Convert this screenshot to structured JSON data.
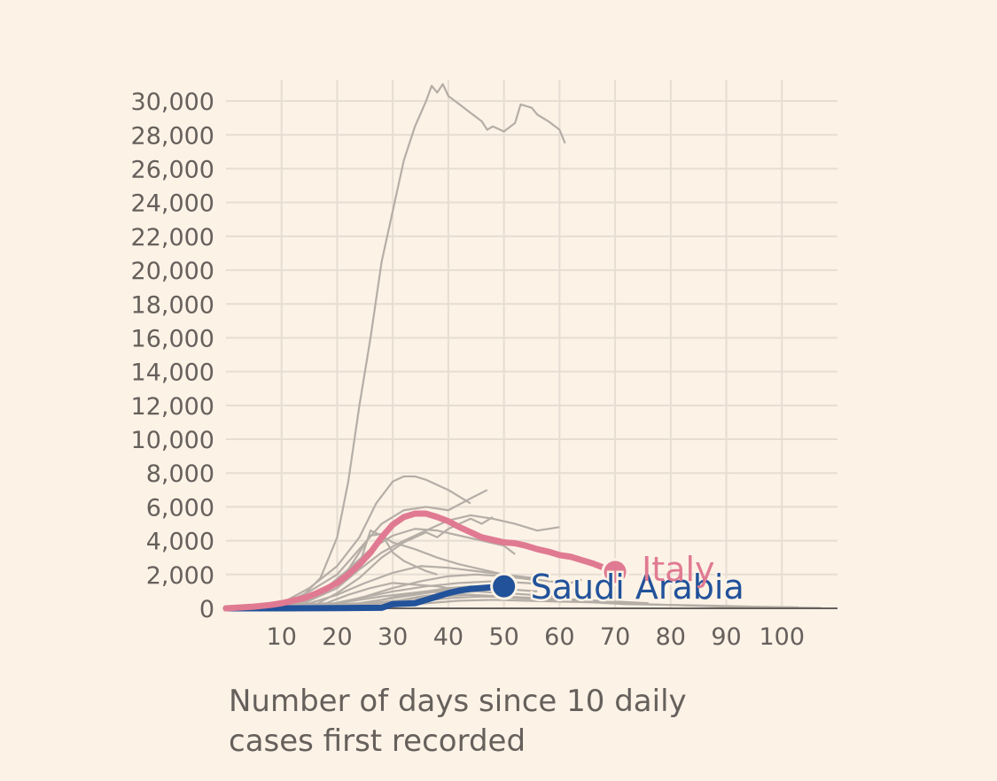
{
  "chart_data": {
    "type": "line",
    "title": "",
    "xlabel": "Number of days since 10 daily cases first recorded",
    "ylabel": "",
    "xlim": [
      0,
      110
    ],
    "ylim": [
      0,
      31000
    ],
    "x_ticks": [
      10,
      20,
      30,
      40,
      50,
      60,
      70,
      80,
      90,
      100
    ],
    "y_ticks": [
      0,
      2000,
      4000,
      6000,
      8000,
      10000,
      12000,
      14000,
      16000,
      18000,
      20000,
      22000,
      24000,
      26000,
      28000,
      30000
    ],
    "y_tick_labels": [
      "0",
      "2,000",
      "4,000",
      "6,000",
      "8,000",
      "10,000",
      "12,000",
      "14,000",
      "16,000",
      "18,000",
      "20,000",
      "22,000",
      "24,000",
      "26,000",
      "28,000",
      "30,000"
    ],
    "x_tick_labels": [
      "10",
      "20",
      "30",
      "40",
      "50",
      "60",
      "70",
      "80",
      "90",
      "100"
    ],
    "grid": true,
    "colors": {
      "background": "#fcf2e6",
      "grid": "#e6ddd3",
      "other_countries": "#b5aea7",
      "italy": "#e07a92",
      "saudi_arabia": "#21529a",
      "tick_text": "#66605c"
    },
    "highlighted": [
      {
        "name": "Italy",
        "color": "#e07a92",
        "points": [
          [
            0,
            0
          ],
          [
            5,
            100
          ],
          [
            8,
            200
          ],
          [
            10,
            300
          ],
          [
            12,
            450
          ],
          [
            14,
            600
          ],
          [
            16,
            850
          ],
          [
            18,
            1150
          ],
          [
            20,
            1500
          ],
          [
            22,
            2000
          ],
          [
            24,
            2600
          ],
          [
            26,
            3300
          ],
          [
            28,
            4200
          ],
          [
            30,
            4950
          ],
          [
            32,
            5400
          ],
          [
            34,
            5600
          ],
          [
            36,
            5600
          ],
          [
            38,
            5400
          ],
          [
            40,
            5150
          ],
          [
            42,
            4800
          ],
          [
            44,
            4500
          ],
          [
            46,
            4200
          ],
          [
            48,
            4050
          ],
          [
            50,
            3900
          ],
          [
            52,
            3850
          ],
          [
            54,
            3700
          ],
          [
            56,
            3500
          ],
          [
            58,
            3350
          ],
          [
            60,
            3150
          ],
          [
            62,
            3050
          ],
          [
            64,
            2850
          ],
          [
            66,
            2650
          ],
          [
            68,
            2400
          ],
          [
            70,
            2150
          ]
        ]
      },
      {
        "name": "Saudi Arabia",
        "color": "#21529a",
        "points": [
          [
            0,
            0
          ],
          [
            10,
            0
          ],
          [
            20,
            10
          ],
          [
            28,
            30
          ],
          [
            30,
            250
          ],
          [
            34,
            300
          ],
          [
            36,
            500
          ],
          [
            38,
            700
          ],
          [
            40,
            900
          ],
          [
            42,
            1050
          ],
          [
            44,
            1150
          ],
          [
            46,
            1200
          ],
          [
            48,
            1250
          ],
          [
            50,
            1300
          ]
        ]
      }
    ],
    "other_series": [
      [
        [
          0,
          0
        ],
        [
          10,
          250
        ],
        [
          14,
          800
        ],
        [
          17,
          1800
        ],
        [
          20,
          4200
        ],
        [
          22,
          7500
        ],
        [
          24,
          12000
        ],
        [
          26,
          16000
        ],
        [
          28,
          20500
        ],
        [
          30,
          23500
        ],
        [
          32,
          26500
        ],
        [
          34,
          28500
        ],
        [
          36,
          30000
        ],
        [
          37,
          30900
        ],
        [
          38,
          30500
        ],
        [
          39,
          31000
        ],
        [
          40,
          30300
        ],
        [
          42,
          29800
        ],
        [
          44,
          29300
        ],
        [
          46,
          28800
        ],
        [
          47,
          28300
        ],
        [
          48,
          28500
        ],
        [
          50,
          28200
        ],
        [
          52,
          28700
        ],
        [
          53,
          29800
        ],
        [
          55,
          29600
        ],
        [
          56,
          29200
        ],
        [
          58,
          28800
        ],
        [
          60,
          28300
        ],
        [
          61,
          27500
        ]
      ],
      [
        [
          0,
          0
        ],
        [
          10,
          300
        ],
        [
          15,
          1200
        ],
        [
          20,
          2500
        ],
        [
          24,
          4200
        ],
        [
          27,
          6200
        ],
        [
          30,
          7500
        ],
        [
          32,
          7800
        ],
        [
          34,
          7800
        ],
        [
          36,
          7600
        ],
        [
          38,
          7300
        ],
        [
          40,
          7000
        ],
        [
          42,
          6600
        ],
        [
          44,
          6200
        ]
      ],
      [
        [
          0,
          0
        ],
        [
          10,
          200
        ],
        [
          15,
          1000
        ],
        [
          20,
          2000
        ],
        [
          24,
          3500
        ],
        [
          28,
          5000
        ],
        [
          32,
          5800
        ],
        [
          36,
          6000
        ],
        [
          40,
          5800
        ],
        [
          44,
          6500
        ],
        [
          47,
          7000
        ]
      ],
      [
        [
          0,
          0
        ],
        [
          12,
          300
        ],
        [
          18,
          1200
        ],
        [
          22,
          2300
        ],
        [
          26,
          3500
        ],
        [
          30,
          4300
        ],
        [
          34,
          4700
        ],
        [
          38,
          4600
        ],
        [
          42,
          4300
        ],
        [
          46,
          4000
        ],
        [
          50,
          3700
        ],
        [
          52,
          3200
        ]
      ],
      [
        [
          0,
          0
        ],
        [
          14,
          300
        ],
        [
          20,
          1200
        ],
        [
          24,
          2300
        ],
        [
          28,
          3300
        ],
        [
          32,
          4000
        ],
        [
          36,
          4600
        ],
        [
          40,
          5200
        ],
        [
          44,
          5500
        ],
        [
          48,
          5300
        ],
        [
          52,
          5000
        ],
        [
          56,
          4600
        ],
        [
          60,
          4800
        ]
      ],
      [
        [
          0,
          0
        ],
        [
          10,
          100
        ],
        [
          15,
          700
        ],
        [
          20,
          1500
        ],
        [
          24,
          2600
        ],
        [
          26,
          4600
        ],
        [
          28,
          4300
        ],
        [
          30,
          3900
        ],
        [
          34,
          3500
        ],
        [
          38,
          3000
        ],
        [
          42,
          2600
        ],
        [
          46,
          2300
        ],
        [
          50,
          2000
        ],
        [
          54,
          1800
        ],
        [
          58,
          1600
        ],
        [
          62,
          1500
        ],
        [
          64,
          1700
        ]
      ],
      [
        [
          0,
          0
        ],
        [
          16,
          200
        ],
        [
          20,
          900
        ],
        [
          24,
          1800
        ],
        [
          28,
          3000
        ],
        [
          32,
          3900
        ],
        [
          36,
          4500
        ],
        [
          38,
          4200
        ],
        [
          40,
          4700
        ],
        [
          44,
          5300
        ],
        [
          46,
          5000
        ],
        [
          48,
          5400
        ]
      ],
      [
        [
          0,
          0
        ],
        [
          14,
          400
        ],
        [
          18,
          1000
        ],
        [
          22,
          2300
        ],
        [
          26,
          4300
        ],
        [
          28,
          4400
        ],
        [
          30,
          3300
        ],
        [
          32,
          2800
        ],
        [
          34,
          2500
        ],
        [
          36,
          2200
        ],
        [
          38,
          2000
        ]
      ],
      [
        [
          0,
          0
        ],
        [
          15,
          300
        ],
        [
          20,
          800
        ],
        [
          25,
          1500
        ],
        [
          30,
          2100
        ],
        [
          35,
          2500
        ],
        [
          40,
          2400
        ],
        [
          45,
          2200
        ],
        [
          50,
          2000
        ],
        [
          55,
          1800
        ]
      ],
      [
        [
          0,
          0
        ],
        [
          20,
          300
        ],
        [
          25,
          700
        ],
        [
          30,
          1200
        ],
        [
          35,
          1600
        ],
        [
          40,
          1900
        ],
        [
          45,
          2000
        ],
        [
          50,
          1900
        ],
        [
          55,
          1700
        ]
      ],
      [
        [
          0,
          0
        ],
        [
          18,
          200
        ],
        [
          24,
          600
        ],
        [
          30,
          1000
        ],
        [
          36,
          1300
        ],
        [
          42,
          1500
        ],
        [
          48,
          1600
        ],
        [
          54,
          1500
        ],
        [
          58,
          1400
        ]
      ],
      [
        [
          0,
          0
        ],
        [
          22,
          200
        ],
        [
          28,
          500
        ],
        [
          32,
          800
        ],
        [
          36,
          1000
        ],
        [
          40,
          1200
        ],
        [
          44,
          1300
        ],
        [
          48,
          1200
        ],
        [
          52,
          1100
        ],
        [
          56,
          1000
        ]
      ],
      [
        [
          0,
          0
        ],
        [
          25,
          200
        ],
        [
          30,
          400
        ],
        [
          35,
          700
        ],
        [
          40,
          900
        ],
        [
          45,
          1000
        ],
        [
          50,
          900
        ],
        [
          55,
          800
        ],
        [
          60,
          700
        ]
      ],
      [
        [
          0,
          0
        ],
        [
          20,
          100
        ],
        [
          26,
          300
        ],
        [
          32,
          500
        ],
        [
          38,
          700
        ],
        [
          44,
          800
        ],
        [
          50,
          700
        ],
        [
          56,
          600
        ],
        [
          62,
          500
        ],
        [
          68,
          400
        ]
      ],
      [
        [
          0,
          0
        ],
        [
          28,
          200
        ],
        [
          34,
          400
        ],
        [
          40,
          600
        ],
        [
          46,
          700
        ],
        [
          52,
          650
        ],
        [
          58,
          600
        ],
        [
          64,
          500
        ],
        [
          70,
          400
        ],
        [
          76,
          300
        ]
      ],
      [
        [
          0,
          0
        ],
        [
          30,
          100
        ],
        [
          36,
          300
        ],
        [
          42,
          450
        ],
        [
          48,
          500
        ],
        [
          54,
          450
        ],
        [
          60,
          400
        ],
        [
          66,
          350
        ],
        [
          72,
          250
        ],
        [
          80,
          200
        ],
        [
          88,
          150
        ],
        [
          95,
          100
        ],
        [
          103,
          60
        ]
      ],
      [
        [
          0,
          0
        ],
        [
          18,
          300
        ],
        [
          22,
          800
        ],
        [
          26,
          1200
        ],
        [
          30,
          1500
        ],
        [
          34,
          1400
        ],
        [
          38,
          1300
        ],
        [
          42,
          1100
        ],
        [
          46,
          1000
        ]
      ],
      [
        [
          0,
          0
        ],
        [
          24,
          300
        ],
        [
          30,
          600
        ],
        [
          36,
          900
        ],
        [
          40,
          1100
        ],
        [
          44,
          1200
        ],
        [
          48,
          1300
        ],
        [
          50,
          1200
        ]
      ],
      [
        [
          0,
          0
        ],
        [
          12,
          100
        ],
        [
          20,
          300
        ],
        [
          28,
          700
        ],
        [
          36,
          1000
        ],
        [
          44,
          800
        ],
        [
          52,
          600
        ],
        [
          60,
          500
        ],
        [
          70,
          300
        ],
        [
          80,
          200
        ],
        [
          90,
          100
        ],
        [
          100,
          50
        ],
        [
          107,
          20
        ]
      ]
    ]
  },
  "labels": {
    "italy": "Italy",
    "saudi_arabia": "Saudi Arabia"
  }
}
